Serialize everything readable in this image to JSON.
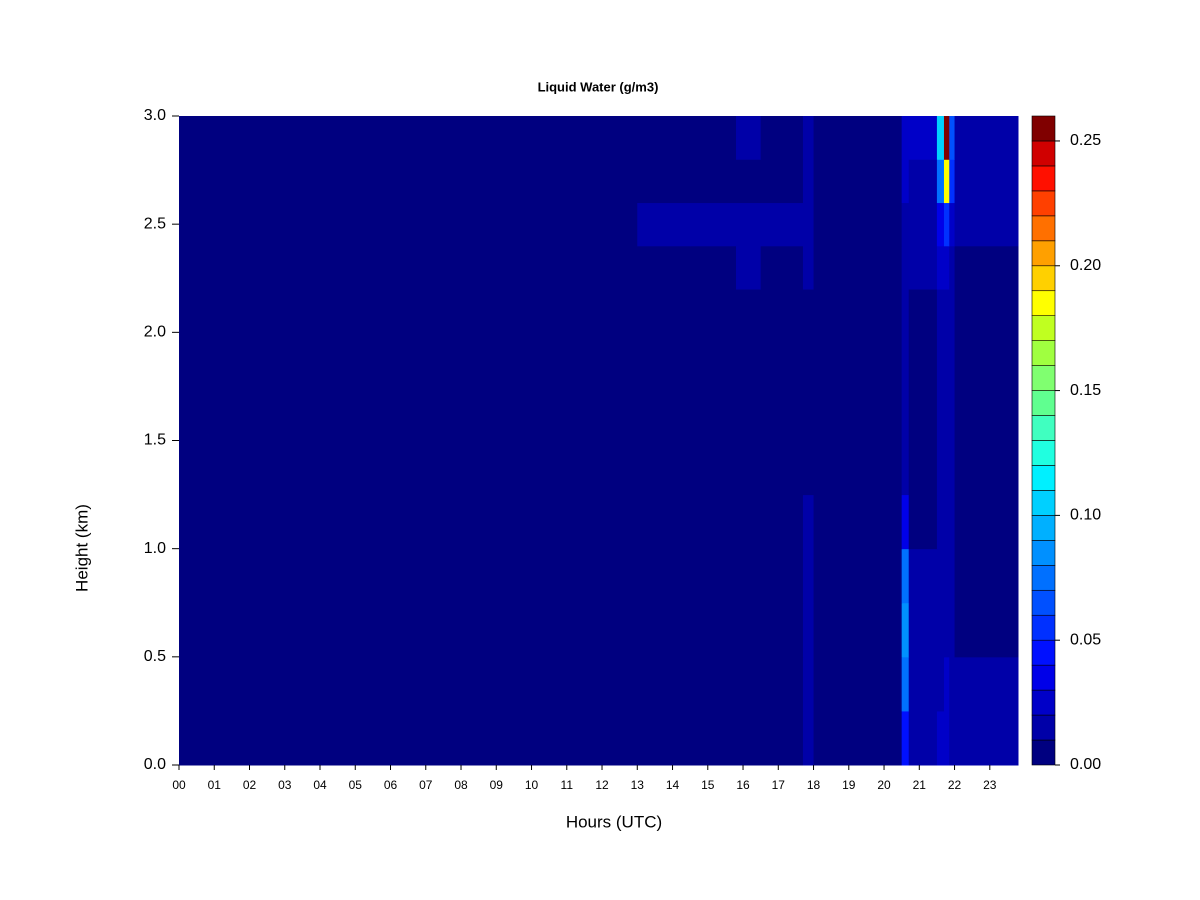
{
  "chart_data": {
    "type": "heatmap",
    "title": "Liquid Water (g/m3)",
    "x_label": "Hours (UTC)",
    "y_label": "Height (km)",
    "xlim": [
      0,
      23.8
    ],
    "xticks": [
      {
        "value": 0,
        "label": "00"
      },
      {
        "value": 1,
        "label": "01"
      },
      {
        "value": 2,
        "label": "02"
      },
      {
        "value": 3,
        "label": "03"
      },
      {
        "value": 4,
        "label": "04"
      },
      {
        "value": 5,
        "label": "05"
      },
      {
        "value": 6,
        "label": "06"
      },
      {
        "value": 7,
        "label": "07"
      },
      {
        "value": 8,
        "label": "08"
      },
      {
        "value": 9,
        "label": "09"
      },
      10,
      11,
      12,
      13,
      14,
      15,
      16,
      17,
      18,
      19,
      20,
      21,
      22,
      23
    ],
    "ylim": [
      0,
      3
    ],
    "yticks": [
      {
        "value": 0,
        "label": "0.0"
      },
      {
        "value": 0.5,
        "label": "0.5"
      },
      {
        "value": 1,
        "label": "1.0"
      },
      {
        "value": 1.5,
        "label": "1.5"
      },
      {
        "value": 2,
        "label": "2.0"
      },
      {
        "value": 2.5,
        "label": "2.5"
      },
      {
        "value": 3,
        "label": "3.0"
      }
    ],
    "xbins": [
      0,
      13,
      14.5,
      15.8,
      16.5,
      17.7,
      18,
      18.4,
      20.5,
      20.7,
      21.5,
      21.7,
      21.85,
      22.0,
      23.8
    ],
    "ybins": [
      0,
      0.25,
      0.5,
      0.75,
      1.0,
      1.25,
      2.2,
      2.4,
      2.6,
      2.8,
      3.0
    ],
    "z": [
      [
        0,
        0,
        0,
        0,
        0,
        0.015,
        0.005,
        0,
        0.04,
        0.015,
        0.02,
        0.02,
        0.015,
        0.015
      ],
      [
        0,
        0,
        0,
        0,
        0.005,
        0.015,
        0.005,
        0,
        0.07,
        0.012,
        0.018,
        0.02,
        0.015,
        0.012
      ],
      [
        0,
        0,
        0,
        0,
        0,
        0.012,
        0,
        0,
        0.08,
        0.01,
        0.015,
        0.018,
        0.012,
        0.008
      ],
      [
        0,
        0,
        0,
        0,
        0,
        0.012,
        0,
        0,
        0.07,
        0.01,
        0.015,
        0.018,
        0.01,
        0.005
      ],
      [
        0,
        0,
        0,
        0,
        0,
        0.01,
        0,
        0,
        0.03,
        0.008,
        0.012,
        0.015,
        0.01,
        0.004
      ],
      [
        0,
        0,
        0,
        0,
        0,
        0,
        0,
        0,
        0.015,
        0.008,
        0.015,
        0.018,
        0.01,
        0.003
      ],
      [
        0,
        0,
        0,
        0.012,
        0.005,
        0.012,
        0,
        0,
        0.015,
        0.01,
        0.02,
        0.025,
        0.015,
        0.005
      ],
      [
        0,
        0.012,
        0.015,
        0.018,
        0.012,
        0.015,
        0.008,
        0.008,
        0.018,
        0.015,
        0.03,
        0.05,
        0.025,
        0.01
      ],
      [
        0,
        0,
        0,
        0.008,
        0.005,
        0.012,
        0,
        0.005,
        0.02,
        0.018,
        0.07,
        0.18,
        0.05,
        0.01
      ],
      [
        0,
        0,
        0,
        0.01,
        0.005,
        0.012,
        0.005,
        0.008,
        0.025,
        0.02,
        0.1,
        0.26,
        0.06,
        0.012
      ]
    ],
    "zlim": [
      0,
      0.26
    ],
    "zticks": [
      {
        "value": 0,
        "label": "0.00"
      },
      {
        "value": 0.05,
        "label": "0.05"
      },
      {
        "value": 0.1,
        "label": "0.10"
      },
      {
        "value": 0.15,
        "label": "0.15"
      },
      {
        "value": 0.2,
        "label": "0.20"
      },
      {
        "value": 0.25,
        "label": "0.25"
      }
    ],
    "colors": [
      "#000080",
      "#0000a8",
      "#0000c8",
      "#0000e8",
      "#0010ff",
      "#0030ff",
      "#0050ff",
      "#0070ff",
      "#0090ff",
      "#00b0ff",
      "#00d0ff",
      "#00f0ff",
      "#20ffe0",
      "#40ffc0",
      "#60ff90",
      "#80ff70",
      "#a0ff40",
      "#c0ff20",
      "#ffff00",
      "#ffd000",
      "#ffa000",
      "#ff7000",
      "#ff4000",
      "#ff1000",
      "#d00000",
      "#800000"
    ]
  }
}
